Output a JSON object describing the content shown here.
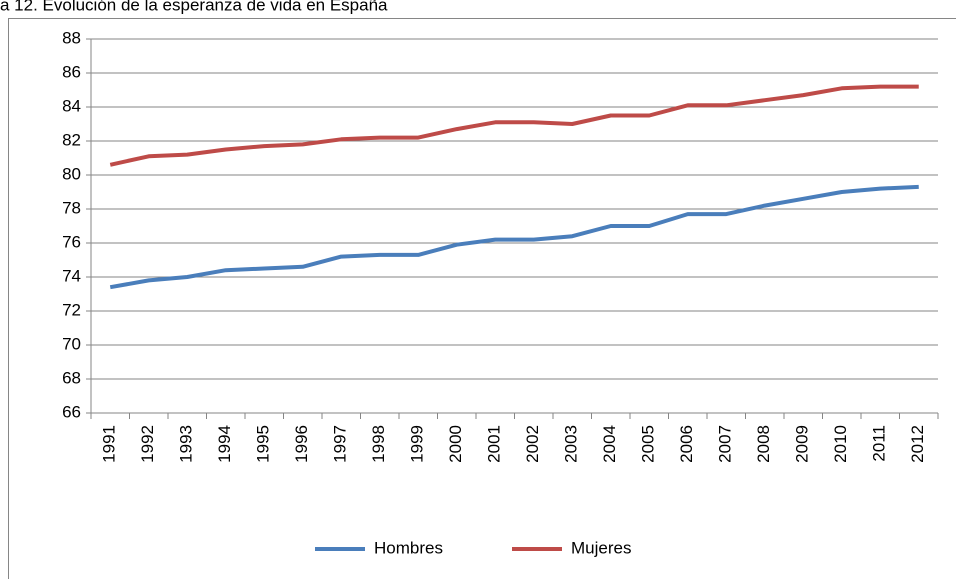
{
  "chart_data": {
    "type": "line",
    "title": "a 12. Evolución de la esperanza de vida en España",
    "categories": [
      "1991",
      "1992",
      "1993",
      "1994",
      "1995",
      "1996",
      "1997",
      "1998",
      "1999",
      "2000",
      "2001",
      "2002",
      "2003",
      "2004",
      "2005",
      "2006",
      "2007",
      "2008",
      "2009",
      "2010",
      "2011",
      "2012"
    ],
    "series": [
      {
        "name": "Hombres",
        "color": "#4a7ebb",
        "values": [
          73.4,
          73.8,
          74.0,
          74.4,
          74.5,
          74.6,
          75.2,
          75.3,
          75.3,
          75.9,
          76.2,
          76.2,
          76.4,
          77.0,
          77.0,
          77.7,
          77.7,
          78.2,
          78.6,
          79.0,
          79.2,
          79.3
        ]
      },
      {
        "name": "Mujeres",
        "color": "#be4b48",
        "values": [
          80.6,
          81.1,
          81.2,
          81.5,
          81.7,
          81.8,
          82.1,
          82.2,
          82.2,
          82.7,
          83.1,
          83.1,
          83.0,
          83.5,
          83.5,
          84.1,
          84.1,
          84.4,
          84.7,
          85.1,
          85.2,
          85.2
        ]
      }
    ],
    "ylim": [
      66,
      88
    ],
    "yticks": [
      66,
      68,
      70,
      72,
      74,
      76,
      78,
      80,
      82,
      84,
      86,
      88
    ],
    "grid": true,
    "legend": "bottom"
  }
}
